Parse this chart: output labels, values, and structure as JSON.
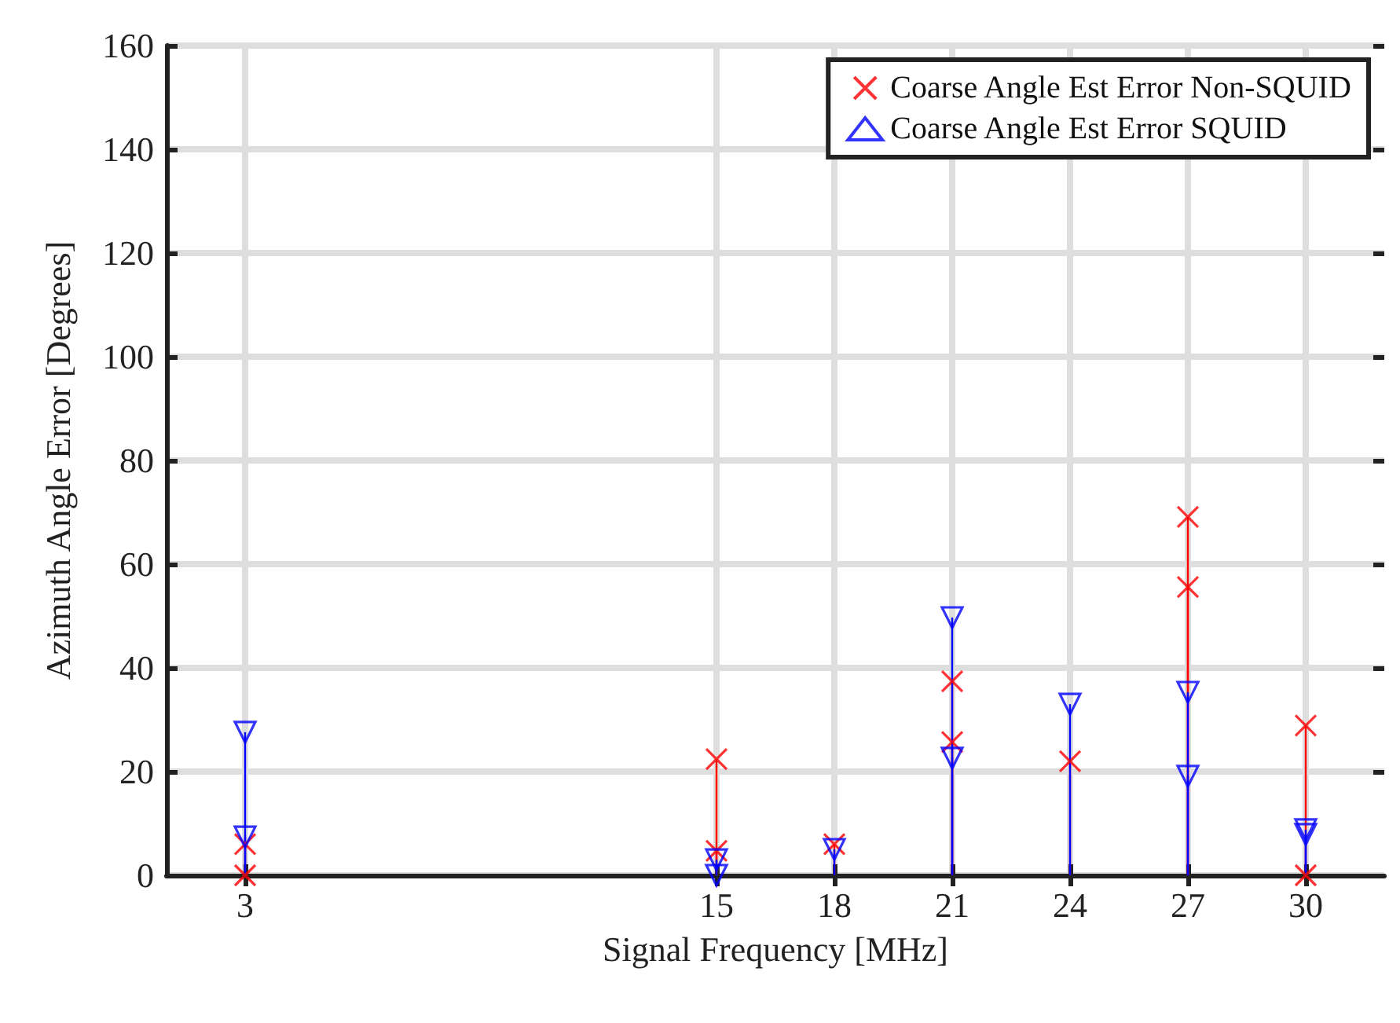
{
  "chart_data": {
    "type": "lollipop",
    "xlabel": "Signal Frequency [MHz]",
    "ylabel": "Azimuth Angle Error [Degrees]",
    "xlim": [
      1,
      32
    ],
    "xticks": [
      3,
      15,
      18,
      21,
      24,
      27,
      30
    ],
    "ylim": [
      0,
      160
    ],
    "yticks": [
      0,
      20,
      40,
      60,
      80,
      100,
      120,
      140,
      160
    ],
    "grid": true,
    "legend": "top right",
    "line_style": "solid",
    "series": [
      {
        "name": "Coarse Angle Est Error Non-SQUID",
        "color": "#ff0000",
        "marker": "cross",
        "x": [
          3,
          3,
          15,
          15,
          18,
          21,
          21,
          24,
          27,
          27,
          30,
          30
        ],
        "values": [
          6,
          0,
          22.4,
          4.7,
          6,
          37.4,
          25.7,
          22,
          69.1,
          55.6,
          28.9,
          0
        ]
      },
      {
        "name": "Coarse Angle Est Error SQUID",
        "color": "#0000ff",
        "marker": "triangle",
        "x": [
          3,
          3,
          15,
          15,
          18,
          21,
          21,
          24,
          27,
          27,
          30,
          30
        ],
        "values": [
          27.6,
          7.4,
          3,
          0,
          5,
          49.7,
          22.6,
          33,
          35.3,
          19.1,
          8.8,
          7.9
        ]
      }
    ]
  }
}
